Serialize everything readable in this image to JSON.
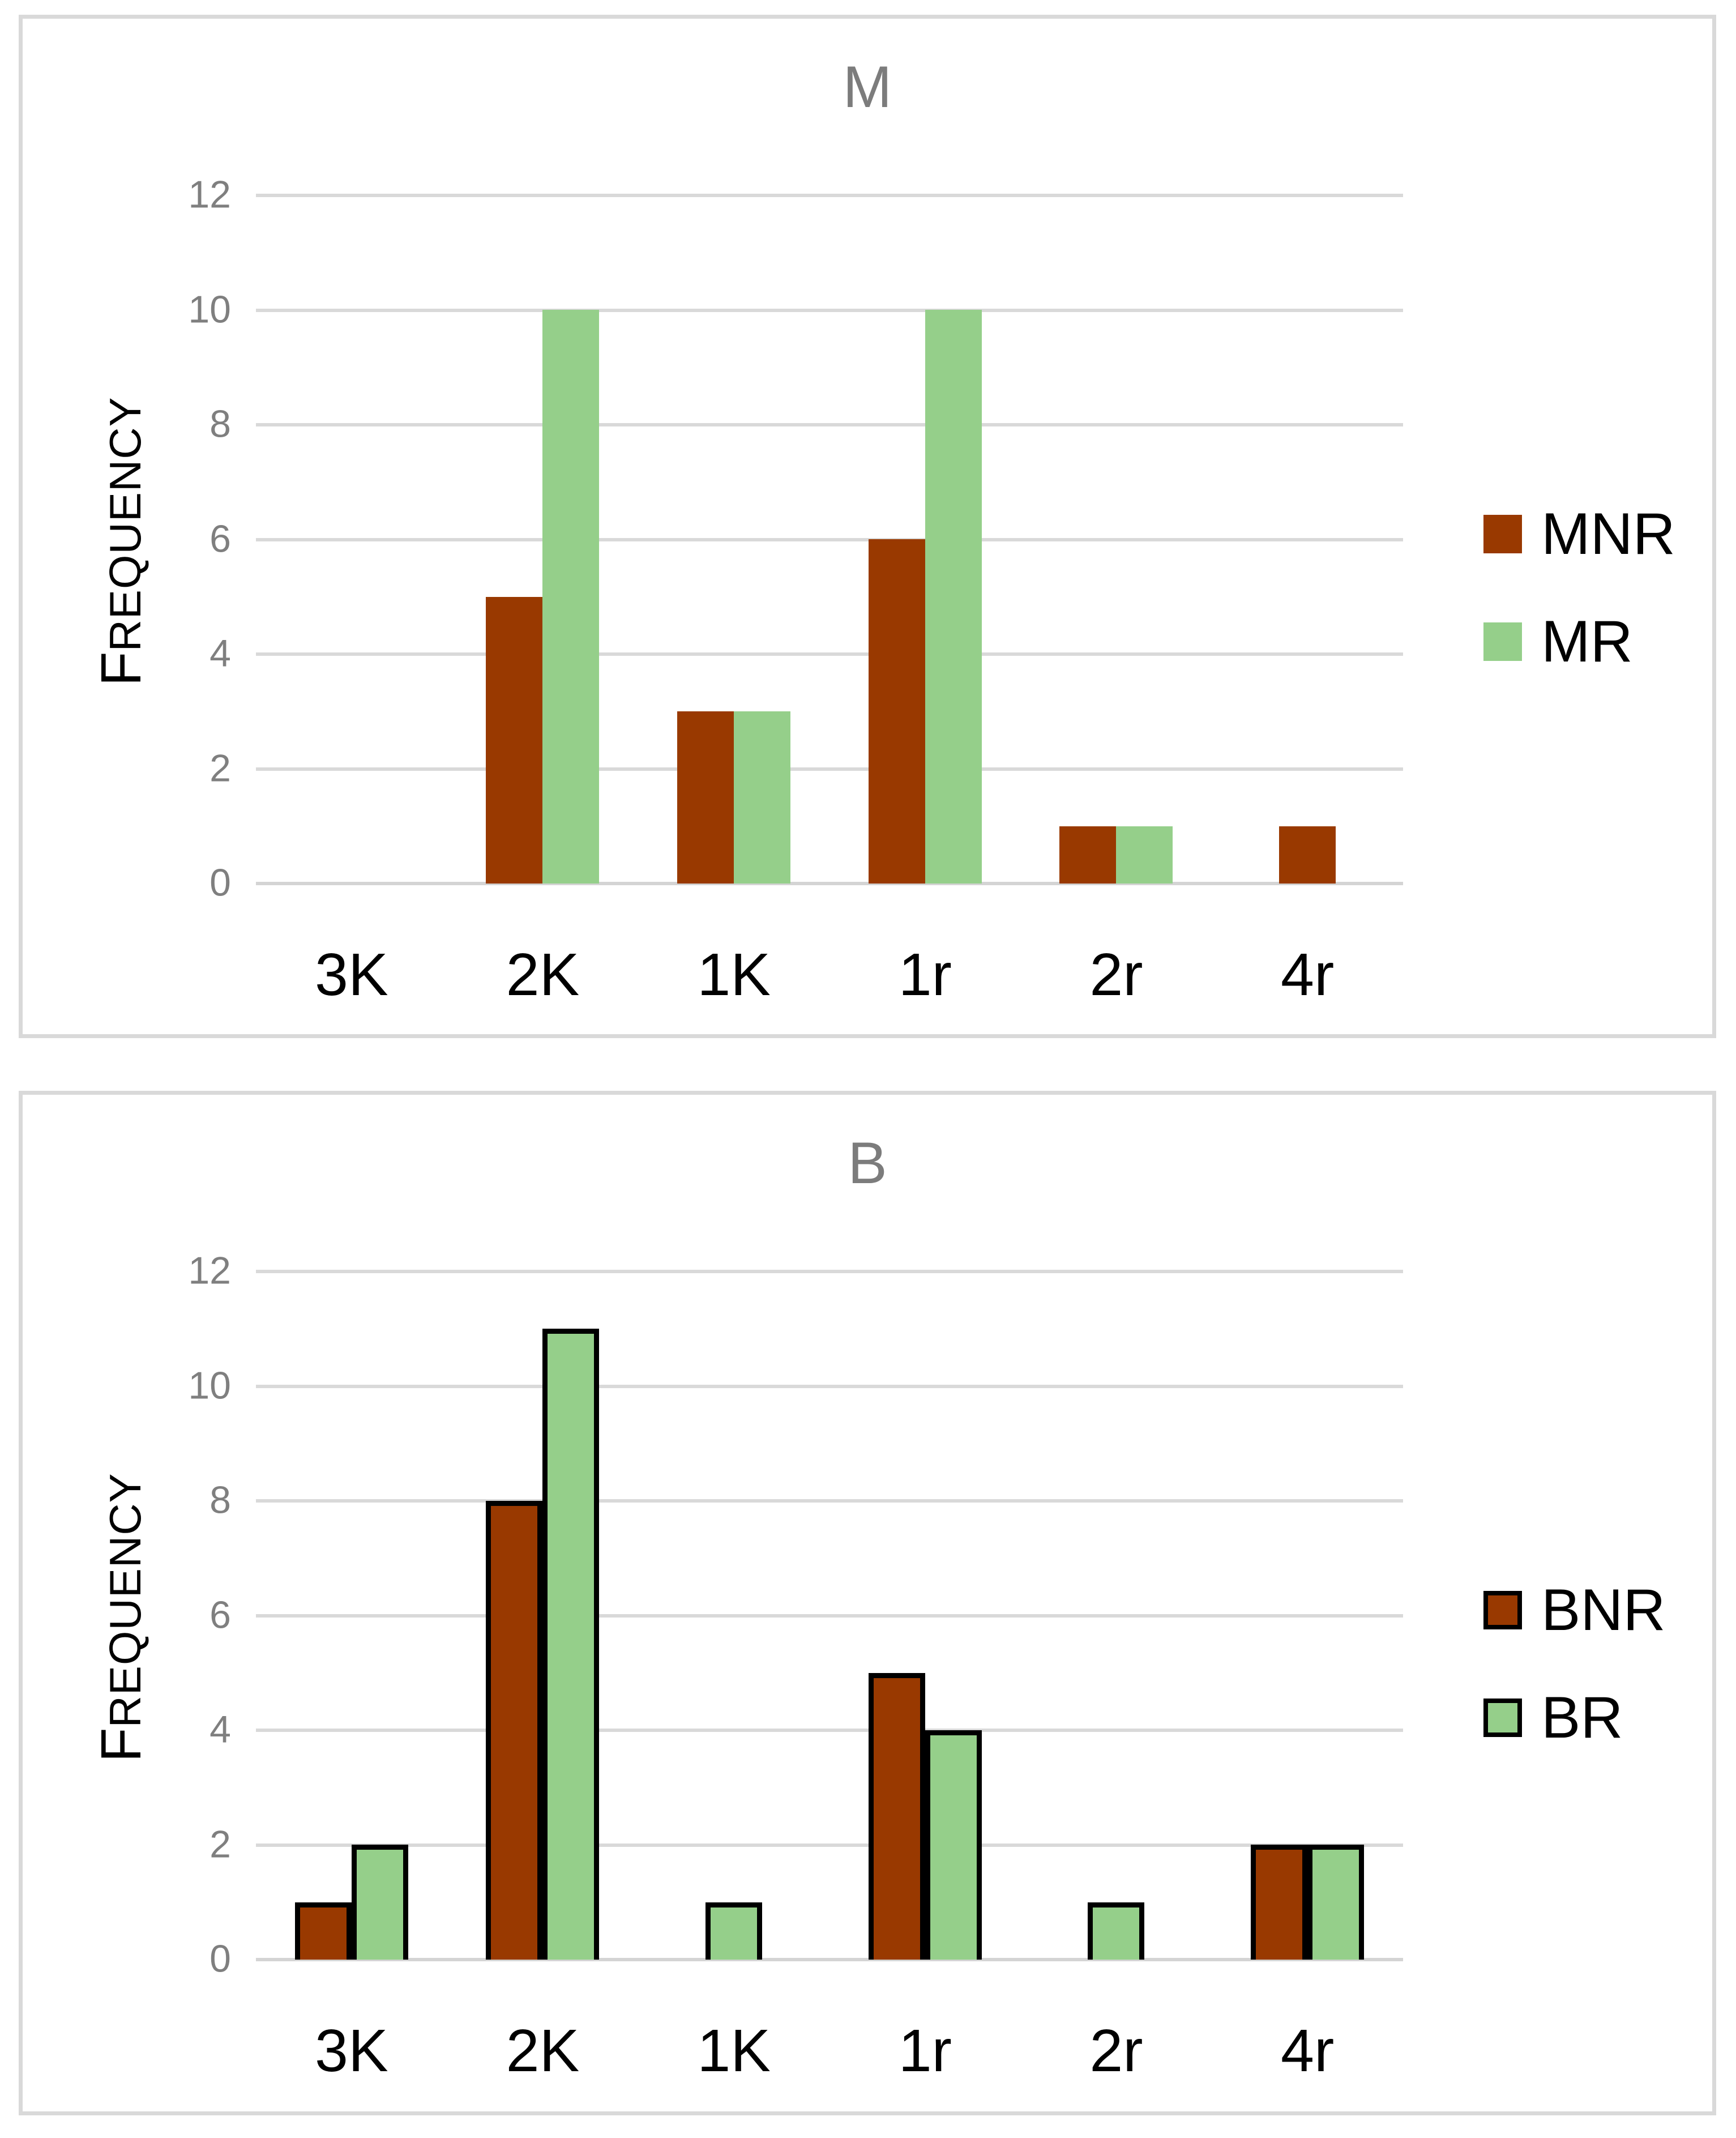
{
  "styles": {
    "background": "#FFFFFF",
    "panel_border_color": "#D9D9D9",
    "grid_color": "#D9D9D9",
    "axis_line_color": "#D4D4D4",
    "tick_label_color": "#7F7F7F",
    "title_color": "#7C7C7C",
    "text_color": "#000000",
    "series_brown": "#993900",
    "series_green": "#95CF8A",
    "outline_black": "#000000"
  },
  "chart_data": [
    {
      "type": "bar",
      "title": "M",
      "xlabel": "",
      "ylabel": "Frequency",
      "categories": [
        "3K",
        "2K",
        "1K",
        "1r",
        "2r",
        "4r"
      ],
      "series": [
        {
          "name": "MNR",
          "color": "#993900",
          "outlined": false,
          "values": [
            0,
            5,
            3,
            6,
            1,
            1
          ]
        },
        {
          "name": "MR",
          "color": "#95CF8A",
          "outlined": false,
          "values": [
            0,
            10,
            3,
            10,
            1,
            0
          ]
        }
      ],
      "ylim": [
        0,
        12
      ],
      "y_ticks": [
        0,
        2,
        4,
        6,
        8,
        10,
        12
      ],
      "grid": "horizontal",
      "legend_position": "right"
    },
    {
      "type": "bar",
      "title": "B",
      "xlabel": "",
      "ylabel": "Frequency",
      "categories": [
        "3K",
        "2K",
        "1K",
        "1r",
        "2r",
        "4r"
      ],
      "series": [
        {
          "name": "BNR",
          "color": "#993900",
          "outlined": true,
          "outline_color": "#000000",
          "values": [
            1,
            8,
            0,
            5,
            0,
            2
          ]
        },
        {
          "name": "BR",
          "color": "#95CF8A",
          "outlined": true,
          "outline_color": "#000000",
          "values": [
            2,
            11,
            1,
            4,
            1,
            2
          ]
        }
      ],
      "ylim": [
        0,
        12
      ],
      "y_ticks": [
        0,
        2,
        4,
        6,
        8,
        10,
        12
      ],
      "grid": "horizontal",
      "legend_position": "right"
    }
  ]
}
